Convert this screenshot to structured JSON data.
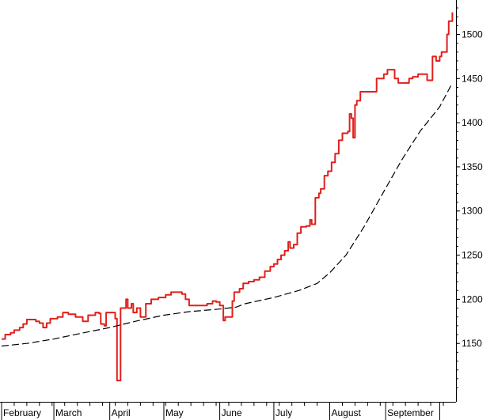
{
  "chart_data": {
    "type": "line",
    "title": "",
    "xlabel": "",
    "ylabel": "",
    "y_axis_position": "right",
    "ylim": [
      1100,
      1530
    ],
    "yticks": [
      1150,
      1200,
      1250,
      1300,
      1350,
      1400,
      1450,
      1500
    ],
    "x_domain": [
      "Feb 1",
      "Oct 3"
    ],
    "x_tick_labels": [
      "February",
      "March",
      "April",
      "May",
      "June",
      "July",
      "August",
      "September"
    ],
    "grid": false,
    "legend": "none",
    "series": [
      {
        "color": "#e0201c",
        "style": "solid",
        "points": [
          [
            "Feb 1",
            1155
          ],
          [
            "Feb 3",
            1160
          ],
          [
            "Feb 6",
            1162
          ],
          [
            "Feb 8",
            1165
          ],
          [
            "Feb 11",
            1168
          ],
          [
            "Feb 13",
            1172
          ],
          [
            "Feb 15",
            1177
          ],
          [
            "Feb 20",
            1175
          ],
          [
            "Feb 22",
            1173
          ],
          [
            "Feb 24",
            1168
          ],
          [
            "Feb 26",
            1173
          ],
          [
            "Feb 28",
            1178
          ],
          [
            "Mar 3",
            1180
          ],
          [
            "Mar 6",
            1185
          ],
          [
            "Mar 9",
            1183
          ],
          [
            "Mar 13",
            1180
          ],
          [
            "Mar 17",
            1175
          ],
          [
            "Mar 20",
            1182
          ],
          [
            "Mar 24",
            1185
          ],
          [
            "Mar 26",
            1184
          ],
          [
            "Mar 27",
            1172
          ],
          [
            "Mar 29",
            1170
          ],
          [
            "Mar 30",
            1185
          ],
          [
            "Apr 3",
            1185
          ],
          [
            "Apr 4",
            1178
          ],
          [
            "Apr 5",
            1108
          ],
          [
            "Apr 6",
            1108
          ],
          [
            "Apr 7",
            1190
          ],
          [
            "Apr 8",
            1190
          ],
          [
            "Apr 10",
            1200
          ],
          [
            "Apr 11",
            1190
          ],
          [
            "Apr 13",
            1195
          ],
          [
            "Apr 14",
            1185
          ],
          [
            "Apr 16",
            1190
          ],
          [
            "Apr 18",
            1180
          ],
          [
            "Apr 19",
            1180
          ],
          [
            "Apr 21",
            1195
          ],
          [
            "Apr 24",
            1200
          ],
          [
            "Apr 28",
            1202
          ],
          [
            "May 2",
            1205
          ],
          [
            "May 5",
            1208
          ],
          [
            "May 8",
            1208
          ],
          [
            "May 11",
            1206
          ],
          [
            "May 13",
            1200
          ],
          [
            "May 15",
            1193
          ],
          [
            "May 22",
            1193
          ],
          [
            "May 25",
            1195
          ],
          [
            "May 28",
            1198
          ],
          [
            "May 30",
            1197
          ],
          [
            "Jun 1",
            1193
          ],
          [
            "Jun 3",
            1176
          ],
          [
            "Jun 4",
            1180
          ],
          [
            "Jun 7",
            1180
          ],
          [
            "Jun 8",
            1198
          ],
          [
            "Jun 9",
            1208
          ],
          [
            "Jun 12",
            1212
          ],
          [
            "Jun 14",
            1218
          ],
          [
            "Jun 17",
            1220
          ],
          [
            "Jun 20",
            1222
          ],
          [
            "Jun 23",
            1225
          ],
          [
            "Jun 26",
            1232
          ],
          [
            "Jun 29",
            1237
          ],
          [
            "Jul 1",
            1240
          ],
          [
            "Jul 3",
            1245
          ],
          [
            "Jul 5",
            1250
          ],
          [
            "Jul 7",
            1255
          ],
          [
            "Jul 9",
            1265
          ],
          [
            "Jul 10",
            1258
          ],
          [
            "Jul 12",
            1262
          ],
          [
            "Jul 14",
            1275
          ],
          [
            "Jul 16",
            1282
          ],
          [
            "Jul 19",
            1283
          ],
          [
            "Jul 21",
            1290
          ],
          [
            "Jul 22",
            1285
          ],
          [
            "Jul 24",
            1315
          ],
          [
            "Jul 26",
            1320
          ],
          [
            "Jul 27",
            1325
          ],
          [
            "Jul 29",
            1340
          ],
          [
            "Jul 31",
            1345
          ],
          [
            "Aug 2",
            1355
          ],
          [
            "Aug 4",
            1365
          ],
          [
            "Aug 6",
            1380
          ],
          [
            "Aug 8",
            1388
          ],
          [
            "Aug 11",
            1390
          ],
          [
            "Aug 12",
            1410
          ],
          [
            "Aug 13",
            1405
          ],
          [
            "Aug 14",
            1383
          ],
          [
            "Aug 15",
            1420
          ],
          [
            "Aug 16",
            1425
          ],
          [
            "Aug 18",
            1435
          ],
          [
            "Aug 25",
            1435
          ],
          [
            "Aug 27",
            1450
          ],
          [
            "Aug 31",
            1455
          ],
          [
            "Sep 2",
            1460
          ],
          [
            "Sep 4",
            1460
          ],
          [
            "Sep 6",
            1450
          ],
          [
            "Sep 8",
            1445
          ],
          [
            "Sep 12",
            1445
          ],
          [
            "Sep 14",
            1450
          ],
          [
            "Sep 16",
            1452
          ],
          [
            "Sep 19",
            1455
          ],
          [
            "Sep 23",
            1455
          ],
          [
            "Sep 24",
            1448
          ],
          [
            "Sep 26",
            1448
          ],
          [
            "Sep 27",
            1475
          ],
          [
            "Sep 28",
            1475
          ],
          [
            "Sep 29",
            1470
          ],
          [
            "Oct 1",
            1475
          ],
          [
            "Oct 2",
            1480
          ],
          [
            "Oct 3",
            1480
          ],
          [
            "Oct 5",
            1500
          ],
          [
            "Oct 6",
            1515
          ],
          [
            "Oct 8",
            1525
          ]
        ]
      },
      {
        "color": "#000000",
        "style": "dashed",
        "points": [
          [
            "Feb 1",
            1147
          ],
          [
            "Feb 15",
            1150
          ],
          [
            "Mar 1",
            1155
          ],
          [
            "Mar 15",
            1161
          ],
          [
            "Apr 1",
            1168
          ],
          [
            "Apr 15",
            1175
          ],
          [
            "May 1",
            1182
          ],
          [
            "May 15",
            1186
          ],
          [
            "Jun 1",
            1189
          ],
          [
            "Jun 10",
            1191
          ],
          [
            "Jun 15",
            1195
          ],
          [
            "Jul 1",
            1202
          ],
          [
            "Jul 15",
            1210
          ],
          [
            "Jul 25",
            1218
          ],
          [
            "Aug 1",
            1230
          ],
          [
            "Aug 10",
            1250
          ],
          [
            "Aug 20",
            1282
          ],
          [
            "Aug 31",
            1322
          ],
          [
            "Sep 10",
            1358
          ],
          [
            "Sep 20",
            1390
          ],
          [
            "Oct 1",
            1418
          ],
          [
            "Oct 8",
            1445
          ]
        ]
      }
    ]
  }
}
